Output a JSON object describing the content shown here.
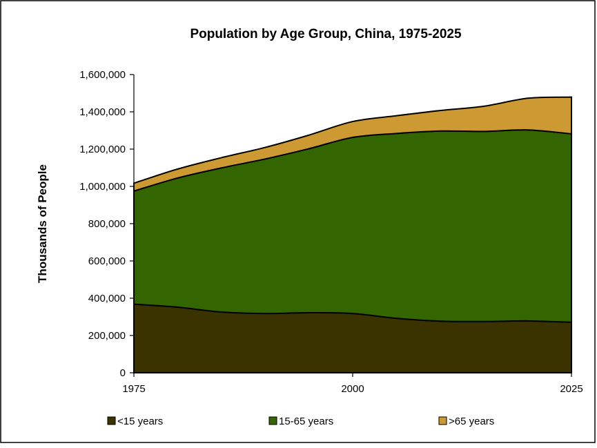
{
  "colors": {
    "under_15": "#3a3300",
    "age_15_65": "#336600",
    "over_65": "#cc9933",
    "stroke": "#000000",
    "background": "#ffffff"
  },
  "chart_data": {
    "type": "area",
    "stacked": true,
    "title": "Population by Age Group, China, 1975-2025",
    "xlabel": "",
    "ylabel": "Thousands of People",
    "x": [
      1975,
      1980,
      1985,
      1990,
      1995,
      2000,
      2005,
      2010,
      2015,
      2020,
      2025
    ],
    "xticks": [
      "1975",
      "2000",
      "2025"
    ],
    "ylim": [
      0,
      1600000
    ],
    "yticks": [
      "0",
      "200,000",
      "400,000",
      "600,000",
      "800,000",
      "1,000,000",
      "1,200,000",
      "1,400,000",
      "1,600,000"
    ],
    "grid": false,
    "legend_position": "bottom",
    "series": [
      {
        "name": "<15 years",
        "values": [
          368000,
          352000,
          326000,
          318000,
          322000,
          318000,
          292000,
          277000,
          275000,
          278000,
          271000
        ]
      },
      {
        "name": "15-65 years",
        "values": [
          607000,
          693000,
          773000,
          829000,
          880000,
          945000,
          992000,
          1020000,
          1020000,
          1025000,
          1011000
        ]
      },
      {
        "name": ">65 years",
        "values": [
          42000,
          48000,
          55000,
          62000,
          73000,
          85000,
          95000,
          110000,
          135000,
          170000,
          197000
        ]
      }
    ]
  }
}
